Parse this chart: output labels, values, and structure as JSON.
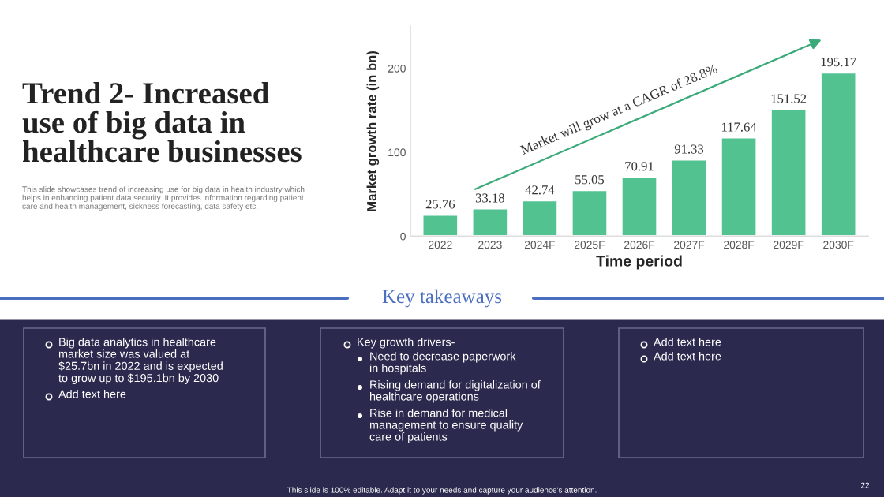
{
  "chart_data": {
    "type": "bar",
    "title": "Trend 2- Increased\nuse of big data in\nhealthcare businesses",
    "subtitle": "This slide showcases trend of increasing use for big data in health industry which\nhelps in enhancing patient data security. It provides information regarding patient\ncare and health management, sickness forecasting, data safety etc.",
    "xlabel": "Time period",
    "ylabel": "Market growth rate (in bn)",
    "categories": [
      "2022",
      "2023",
      "2024F",
      "2025F",
      "2026F",
      "2027F",
      "2028F",
      "2029F",
      "2030F"
    ],
    "values": [
      25.76,
      33.18,
      42.74,
      55.05,
      70.91,
      91.33,
      117.64,
      151.52,
      195.17
    ],
    "color": "#52c290",
    "data_labels": true,
    "ylim": [
      0,
      250
    ],
    "yticks": [
      0,
      100,
      200
    ],
    "grid": false,
    "legend": false,
    "annotations": [
      "Market will grow at a CAGR of 28.8%",
      "Key takeaways",
      "Big data analytics in healthcare\nmarket size was valued at\n$25.7bn in 2022 and is expected\nto grow up to $195.1bn by 2030",
      "Add text here",
      "Key growth drivers-",
      "Need to decrease paperwork\nin hospitals",
      "Rising demand for digitalization of\nhealthcare operations",
      "Rise in demand for medical\nmanagement to ensure quality\ncare of patients",
      "Add text here",
      "Add text here",
      "This slide is 100% editable. Adapt it to your needs and capture your audience's attention.",
      "22"
    ]
  }
}
